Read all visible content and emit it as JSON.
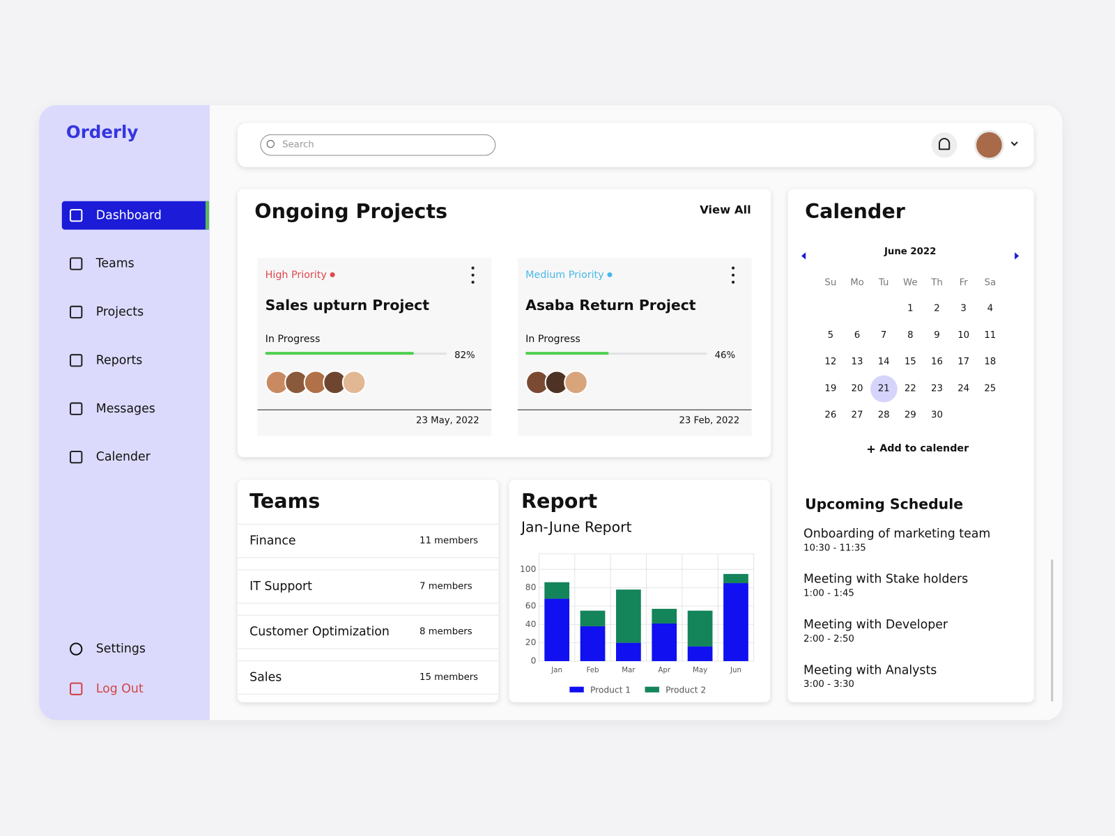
{
  "brand": "Orderly",
  "nav": {
    "items": [
      "Dashboard",
      "Teams",
      "Projects",
      "Reports",
      "Messages",
      "Calender"
    ],
    "active": "Dashboard",
    "bottom": [
      "Settings",
      "Log Out"
    ]
  },
  "search": {
    "placeholder": "Search"
  },
  "projects": {
    "title": "Ongoing Projects",
    "view_all": "View All",
    "cards": [
      {
        "priority": "High Priority",
        "priority_color": "#e0474c",
        "name": "Sales upturn Project",
        "status": "In Progress",
        "progress": {
          "value": 82,
          "label": "82%"
        },
        "avatars": [
          "#c98a62",
          "#8a5a3c",
          "#b07048",
          "#6e4630",
          "#e2b894"
        ],
        "date": "23 May, 2022"
      },
      {
        "priority": "Medium Priority",
        "priority_color": "#4ab8e8",
        "name": "Asaba Return Project",
        "status": "In Progress",
        "progress": {
          "value": 46,
          "label": "46%"
        },
        "avatars": [
          "#7a4a32",
          "#4e3224",
          "#d8a47c"
        ],
        "date": "23 Feb, 2022"
      }
    ]
  },
  "teams": {
    "title": "Teams",
    "rows": [
      {
        "name": "Finance",
        "members": "11 members"
      },
      {
        "name": "IT Support",
        "members": "7 members"
      },
      {
        "name": "Customer Optimization",
        "members": "8 members"
      },
      {
        "name": "Sales",
        "members": "15 members"
      }
    ]
  },
  "report": {
    "title": "Report",
    "subtitle": "Jan-June Report"
  },
  "chart_data": {
    "type": "bar",
    "stacked": true,
    "categories": [
      "Jan",
      "Feb",
      "Mar",
      "Apr",
      "May",
      "Jun"
    ],
    "series": [
      {
        "name": "Product 1",
        "color": "#1010f0",
        "values": [
          68,
          38,
          20,
          41,
          16,
          85
        ]
      },
      {
        "name": "Product 2",
        "color": "#14845a",
        "values": [
          18,
          17,
          58,
          16,
          39,
          10
        ]
      }
    ],
    "ylim": [
      0,
      117
    ],
    "yticks": [
      0,
      20,
      40,
      60,
      80,
      100
    ],
    "grid": true,
    "legend": "bottom"
  },
  "calendar": {
    "title": "Calender",
    "month": "June 2022",
    "weekdays": [
      "Su",
      "Mo",
      "Tu",
      "We",
      "Th",
      "Fr",
      "Sa"
    ],
    "days": [
      1,
      2,
      3,
      4,
      5,
      6,
      7,
      8,
      9,
      10,
      11,
      12,
      13,
      14,
      15,
      16,
      17,
      18,
      19,
      20,
      21,
      22,
      23,
      24,
      25,
      26,
      27,
      28,
      29,
      30
    ],
    "selected": 21,
    "add": "Add to calender"
  },
  "schedule": {
    "title": "Upcoming Schedule",
    "items": [
      {
        "title": "Onboarding of marketing team",
        "time": "10:30 - 11:35"
      },
      {
        "title": "Meeting with  Stake holders",
        "time": "1:00 - 1:45"
      },
      {
        "title": "Meeting with Developer",
        "time": "2:00 - 2:50"
      },
      {
        "title": "Meeting with Analysts",
        "time": "3:00 - 3:30"
      }
    ]
  }
}
